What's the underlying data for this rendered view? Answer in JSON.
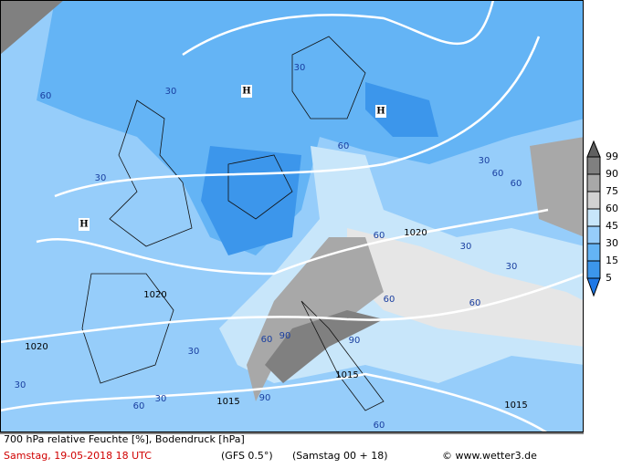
{
  "legend": {
    "levels": [
      99,
      90,
      75,
      60,
      45,
      30,
      15,
      5
    ]
  },
  "map": {
    "pressure_centers": [
      "H",
      "H",
      "H"
    ],
    "isobar_labels": [
      "1020",
      "1020",
      "1020",
      "1015",
      "1015",
      "1015"
    ],
    "humidity_labels": [
      "30",
      "60",
      "30",
      "30",
      "60",
      "30",
      "60",
      "30",
      "60",
      "90",
      "90",
      "90",
      "60",
      "30",
      "60",
      "30",
      "60",
      "30",
      "30",
      "60",
      "60",
      "60"
    ]
  },
  "footer": {
    "title": "700 hPa relative Feuchte [%], Bodendruck [hPa]",
    "date": "Samstag, 19-05-2018  18 UTC",
    "model": "(GFS 0.5°)",
    "run": "(Samstag 00 + 18)",
    "copyright": "© www.wetter3.de"
  }
}
